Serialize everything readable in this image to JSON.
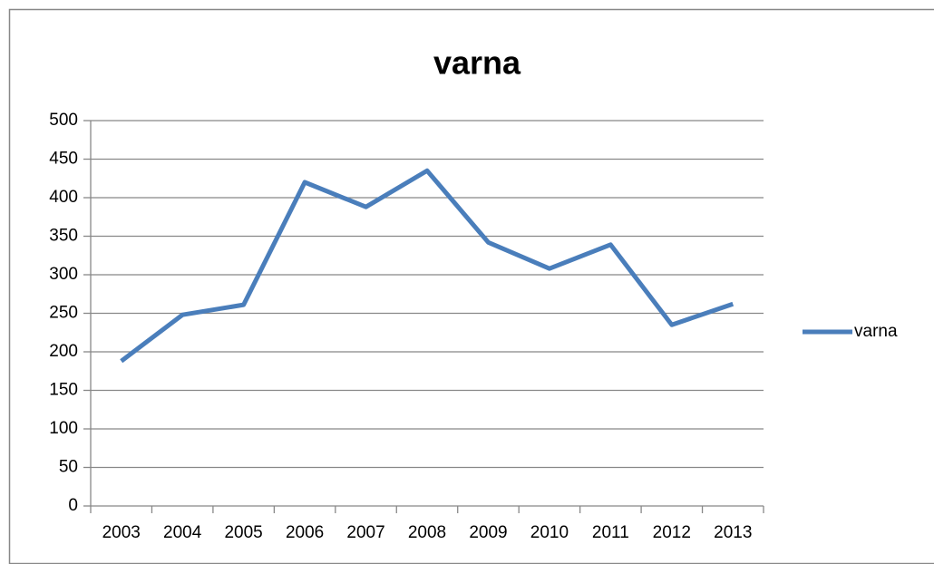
{
  "chart_data": {
    "type": "line",
    "title": "varna",
    "categories": [
      "2003",
      "2004",
      "2005",
      "2006",
      "2007",
      "2008",
      "2009",
      "2010",
      "2011",
      "2012",
      "2013"
    ],
    "series": [
      {
        "name": "varna",
        "color": "#4a7ebb",
        "values": [
          188,
          248,
          261,
          420,
          388,
          435,
          342,
          308,
          339,
          235,
          262
        ]
      }
    ],
    "ylim": [
      0,
      500
    ],
    "yticks": [
      0,
      50,
      100,
      150,
      200,
      250,
      300,
      350,
      400,
      450,
      500
    ],
    "grid": true,
    "legend": "right"
  }
}
